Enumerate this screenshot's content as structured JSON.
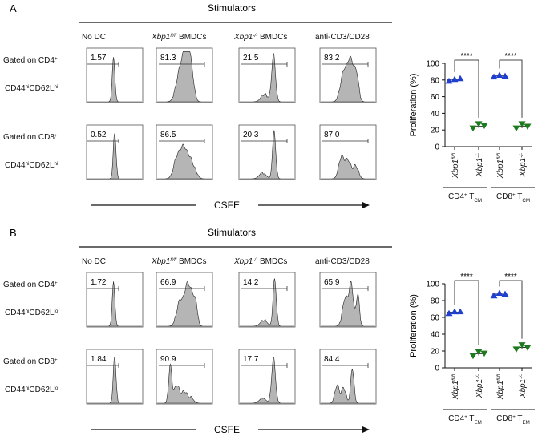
{
  "panels": [
    {
      "letter": "A",
      "stimulators_title": "Stimulators",
      "columns": [
        {
          "parts": [
            {
              "t": "No DC"
            }
          ]
        },
        {
          "parts": [
            {
              "t": "Xbp1",
              "i": true
            },
            {
              "t": "fl/fl",
              "i": true,
              "sup": true
            },
            {
              "t": " BMDCs"
            }
          ]
        },
        {
          "parts": [
            {
              "t": "Xbp1",
              "i": true
            },
            {
              "t": "-/-",
              "i": true,
              "sup": true
            },
            {
              "t": " BMDCs"
            }
          ]
        },
        {
          "parts": [
            {
              "t": "anti-CD3/CD28"
            }
          ]
        }
      ],
      "rows": [
        {
          "line1": [
            {
              "t": "Gated on CD4"
            },
            {
              "t": "+",
              "sup": true
            }
          ],
          "line2": [
            {
              "t": "CD44"
            },
            {
              "t": "hi",
              "sup": true
            },
            {
              "t": "CD62L"
            },
            {
              "t": "hi",
              "sup": true
            }
          ],
          "percents": [
            "1.57",
            "81.3",
            "21.5",
            "83.2"
          ]
        },
        {
          "line1": [
            {
              "t": "Gated on CD8"
            },
            {
              "t": "+",
              "sup": true
            }
          ],
          "line2": [
            {
              "t": "CD44"
            },
            {
              "t": "hi",
              "sup": true
            },
            {
              "t": "CD62L"
            },
            {
              "t": "hi",
              "sup": true
            }
          ],
          "percents": [
            "0.52",
            "86.5",
            "20.3",
            "87.0"
          ]
        }
      ],
      "xaxis_label": "CSFE",
      "bar_groups": [
        [
          {
            "t": "CD4"
          },
          {
            "t": "+",
            "sup": true
          },
          {
            "t": " T"
          },
          {
            "t": "CM",
            "sub": true
          }
        ],
        [
          {
            "t": "CD8"
          },
          {
            "t": "+",
            "sup": true
          },
          {
            "t": " T"
          },
          {
            "t": "CM",
            "sub": true
          }
        ]
      ]
    },
    {
      "letter": "B",
      "stimulators_title": "Stimulators",
      "columns": [
        {
          "parts": [
            {
              "t": "No DC"
            }
          ]
        },
        {
          "parts": [
            {
              "t": "Xbp1",
              "i": true
            },
            {
              "t": "fl/fl",
              "i": true,
              "sup": true
            },
            {
              "t": " BMDCs"
            }
          ]
        },
        {
          "parts": [
            {
              "t": "Xbp1",
              "i": true
            },
            {
              "t": "-/-",
              "i": true,
              "sup": true
            },
            {
              "t": " BMDCs"
            }
          ]
        },
        {
          "parts": [
            {
              "t": "anti-CD3/CD28"
            }
          ]
        }
      ],
      "rows": [
        {
          "line1": [
            {
              "t": "Gated on CD4"
            },
            {
              "t": "+",
              "sup": true
            }
          ],
          "line2": [
            {
              "t": "CD44"
            },
            {
              "t": "hi",
              "sup": true
            },
            {
              "t": "CD62L"
            },
            {
              "t": "lo",
              "sup": true
            }
          ],
          "percents": [
            "1.72",
            "66.9",
            "14.2",
            "65.9"
          ]
        },
        {
          "line1": [
            {
              "t": "Gated on CD8"
            },
            {
              "t": "+",
              "sup": true
            }
          ],
          "line2": [
            {
              "t": "CD44"
            },
            {
              "t": "hi",
              "sup": true
            },
            {
              "t": "CD62L"
            },
            {
              "t": "lo",
              "sup": true
            }
          ],
          "percents": [
            "1.84",
            "90.9",
            "17.7",
            "84.4"
          ]
        }
      ],
      "xaxis_label": "CSFE",
      "bar_groups": [
        [
          {
            "t": "CD4"
          },
          {
            "t": "+",
            "sup": true
          },
          {
            "t": " T"
          },
          {
            "t": "EM",
            "sub": true
          }
        ],
        [
          {
            "t": "CD8"
          },
          {
            "t": "+",
            "sup": true
          },
          {
            "t": " T"
          },
          {
            "t": "EM",
            "sub": true
          }
        ]
      ]
    }
  ],
  "colors": {
    "wt_marker": "#1f3fd1",
    "ko_marker": "#1e7a1e",
    "histogram_fill": "#b5b5b5"
  },
  "chart_data": [
    {
      "type": "scatter",
      "ylabel": "Proliferation (%)",
      "ylim": [
        0,
        100
      ],
      "yticks": [
        0,
        20,
        40,
        60,
        80,
        100
      ],
      "categories": [
        [
          {
            "t": "Xbp1",
            "i": true
          },
          {
            "t": "fl/fl",
            "i": true,
            "sup": true
          }
        ],
        [
          {
            "t": "Xbp1",
            "i": true
          },
          {
            "t": "-/-",
            "i": true,
            "sup": true
          }
        ],
        [
          {
            "t": "Xbp1",
            "i": true
          },
          {
            "t": "fl/fl",
            "i": true,
            "sup": true
          }
        ],
        [
          {
            "t": "Xbp1",
            "i": true
          },
          {
            "t": "-/-",
            "i": true,
            "sup": true
          }
        ]
      ],
      "points": [
        [
          79,
          81,
          82
        ],
        [
          22,
          27,
          25
        ],
        [
          84,
          86,
          85
        ],
        [
          22,
          27,
          24
        ]
      ],
      "significance": [
        "****",
        "****"
      ]
    },
    {
      "type": "scatter",
      "ylabel": "Proliferation (%)",
      "ylim": [
        0,
        100
      ],
      "yticks": [
        0,
        20,
        40,
        60,
        80,
        100
      ],
      "categories": [
        [
          {
            "t": "Xbp1",
            "i": true
          },
          {
            "t": "fl/fl",
            "i": true,
            "sup": true
          }
        ],
        [
          {
            "t": "Xbp1",
            "i": true
          },
          {
            "t": "-/-",
            "i": true,
            "sup": true
          }
        ],
        [
          {
            "t": "Xbp1",
            "i": true
          },
          {
            "t": "fl/fl",
            "i": true,
            "sup": true
          }
        ],
        [
          {
            "t": "Xbp1",
            "i": true
          },
          {
            "t": "-/-",
            "i": true,
            "sup": true
          }
        ]
      ],
      "points": [
        [
          65,
          67,
          67
        ],
        [
          14,
          19,
          17
        ],
        [
          86,
          89,
          88
        ],
        [
          22,
          27,
          24
        ]
      ],
      "significance": [
        "****",
        "****"
      ]
    }
  ]
}
